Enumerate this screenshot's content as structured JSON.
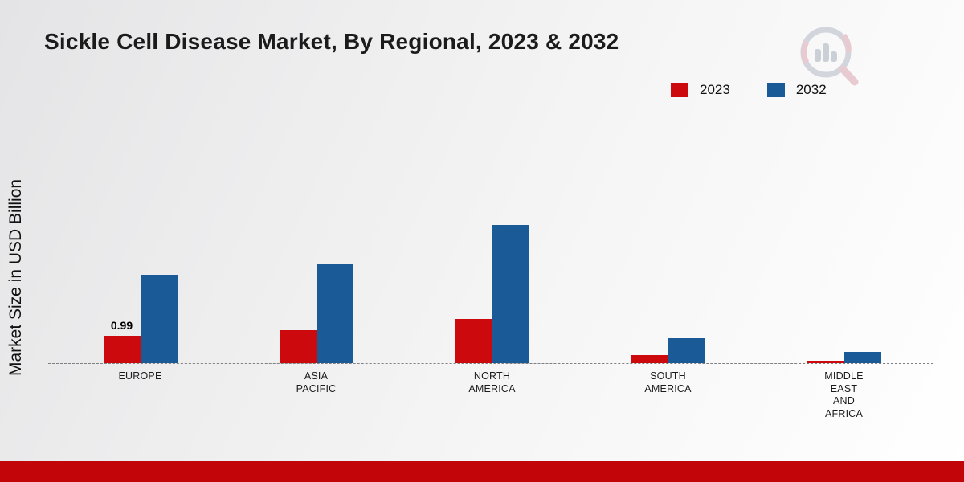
{
  "title": "Sickle Cell Disease Market, By Regional, 2023 & 2032",
  "y_axis_label": "Market Size in USD Billion",
  "legend": [
    {
      "label": "2023",
      "color": "#cc0a0e"
    },
    {
      "label": "2032",
      "color": "#1a5a96"
    }
  ],
  "colors": {
    "series_2023": "#cc0a0e",
    "series_2032": "#1a5a96",
    "bottom_band": "#c20509",
    "baseline": "#7f7f7f",
    "background_light": "#f6f6f6"
  },
  "chart_data": {
    "type": "bar",
    "title": "Sickle Cell Disease Market, By Regional, 2023 & 2032",
    "categories": [
      "Europe",
      "Asia Pacific",
      "North America",
      "South America",
      "Middle East and Africa"
    ],
    "category_label_lines": [
      [
        "EUROPE"
      ],
      [
        "ASIA",
        "PACIFIC"
      ],
      [
        "NORTH",
        "AMERICA"
      ],
      [
        "SOUTH",
        "AMERICA"
      ],
      [
        "MIDDLE",
        "EAST",
        "AND",
        "AFRICA"
      ]
    ],
    "series": [
      {
        "name": "2023",
        "color": "#cc0a0e",
        "values": [
          0.99,
          1.2,
          1.6,
          0.3,
          0.08
        ]
      },
      {
        "name": "2032",
        "color": "#1a5a96",
        "values": [
          3.2,
          3.6,
          5.0,
          0.9,
          0.4
        ]
      }
    ],
    "data_labels": [
      {
        "series": "2023",
        "category": "Europe",
        "text": "0.99"
      }
    ],
    "xlabel": "",
    "ylabel": "Market Size in USD Billion",
    "ylim": [
      0,
      6
    ],
    "grid": false,
    "legend_position": "top-right",
    "baseline_style": "dashed"
  }
}
